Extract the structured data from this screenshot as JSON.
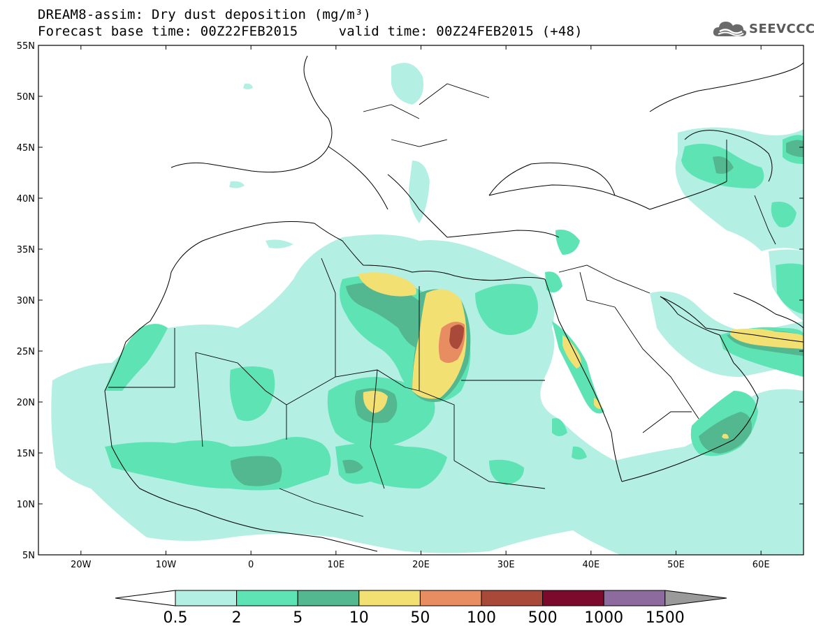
{
  "header": {
    "title": "DREAM8-assim: Dry dust deposition (mg/m³)",
    "subtitle": "Forecast base time: 00Z22FEB2015     valid time: 00Z24FEB2015 (+48)",
    "logo_text": "SEEVCCC"
  },
  "map": {
    "lat_range": [
      5,
      55
    ],
    "lon_range": [
      -25,
      65
    ],
    "lat_labels": [
      "55N",
      "50N",
      "45N",
      "40N",
      "35N",
      "30N",
      "25N",
      "20N",
      "15N",
      "10N",
      "5N"
    ],
    "lon_labels": [
      "20W",
      "10W",
      "0",
      "10E",
      "20E",
      "30E",
      "40E",
      "50E",
      "60E"
    ]
  },
  "colorbar": {
    "labels": [
      "0.5",
      "2",
      "5",
      "10",
      "50",
      "100",
      "500",
      "1000",
      "1500"
    ],
    "colors": [
      "#b3efe3",
      "#5ee3b4",
      "#53b88f",
      "#f2e073",
      "#e88d61",
      "#a9493a",
      "#7b0a2d",
      "#8e6b9f"
    ],
    "low_arrow_color": "#ffffff",
    "high_arrow_color": "#9a9a9a"
  }
}
